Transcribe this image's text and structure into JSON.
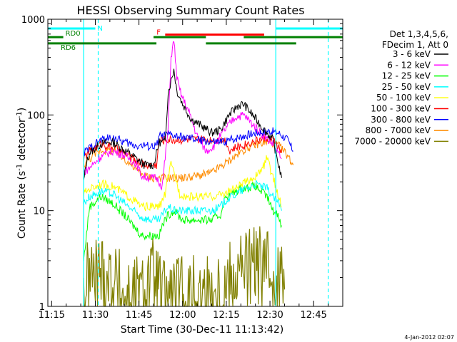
{
  "chart_data": {
    "type": "line",
    "title": "HESSI Observing Summary Count Rates",
    "xlabel": "Start Time (30-Dec-11 11:13:42)",
    "ylabel_pre": "Count Rate (s",
    "ylabel_sup1": "-1",
    "ylabel_mid": " detector",
    "ylabel_sup2": "-1",
    "ylabel_post": ")",
    "footer_stamp": "4-Jan-2012 02:07",
    "y_scale": "log",
    "ylim": [
      1,
      1000
    ],
    "xlim": [
      "11:13:42",
      "12:55:00"
    ],
    "x_ticks": [
      "11:15",
      "11:30",
      "11:45",
      "12:00",
      "12:15",
      "12:30",
      "12:45"
    ],
    "y_ticks": [
      "1",
      "10",
      "100",
      "1000"
    ],
    "legend": {
      "header": [
        "Det 1,3,4,5,6,",
        "FDecim 1, Att 0"
      ],
      "placement": "right"
    },
    "series": [
      {
        "name": "3 - 6 keV",
        "color": "#000000",
        "x": [
          "11:26",
          "11:27",
          "11:28",
          "11:32",
          "11:36",
          "11:40",
          "11:44",
          "11:47",
          "11:50",
          "11:52",
          "11:54",
          "11:55",
          "11:57",
          "11:58",
          "12:00",
          "12:03",
          "12:07",
          "12:10",
          "12:13",
          "12:16",
          "12:19",
          "12:21",
          "12:24",
          "12:28",
          "12:31",
          "12:33",
          "12:34"
        ],
        "y": [
          20,
          32,
          40,
          50,
          52,
          43,
          35,
          30,
          30,
          52,
          52,
          170,
          300,
          180,
          130,
          90,
          75,
          65,
          70,
          100,
          125,
          130,
          100,
          70,
          55,
          30,
          22
        ]
      },
      {
        "name": "6 - 12 keV",
        "color": "#ff00ff",
        "x": [
          "11:26",
          "11:28",
          "11:32",
          "11:36",
          "11:40",
          "11:44",
          "11:46",
          "11:49",
          "11:51",
          "11:53",
          "11:55",
          "11:56",
          "11:57",
          "11:58",
          "11:59",
          "12:00",
          "12:02",
          "12:05",
          "12:08",
          "12:11",
          "12:13",
          "12:16",
          "12:18",
          "12:21",
          "12:24",
          "12:28",
          "12:31",
          "12:34"
        ],
        "y": [
          25,
          28,
          37,
          42,
          38,
          31,
          23,
          22,
          22,
          18,
          70,
          400,
          600,
          250,
          180,
          150,
          110,
          60,
          42,
          48,
          60,
          80,
          95,
          100,
          80,
          60,
          50,
          35
        ]
      },
      {
        "name": "12 - 25 keV",
        "color": "#00ff00",
        "x": [
          "11:26",
          "11:28",
          "11:32",
          "11:36",
          "11:40",
          "11:43",
          "11:46",
          "11:48",
          "11:50",
          "11:52",
          "11:53",
          "11:55",
          "11:57",
          "12:00",
          "12:05",
          "12:10",
          "12:13",
          "12:14",
          "12:15",
          "12:20",
          "12:25",
          "12:29",
          "12:31",
          "12:33",
          "12:34"
        ],
        "y": [
          3,
          11,
          14,
          12,
          9,
          7,
          5.5,
          5.5,
          5.5,
          5.5,
          7,
          9,
          10,
          8,
          8,
          8,
          9,
          12,
          14,
          17,
          18,
          14,
          10,
          9,
          7
        ]
      },
      {
        "name": "25 - 50 keV",
        "color": "#00ffff",
        "x": [
          "11:26",
          "11:28",
          "11:32",
          "11:36",
          "11:40",
          "11:43",
          "11:46",
          "11:49",
          "11:52",
          "11:54",
          "11:55",
          "11:57",
          "12:00",
          "12:05",
          "12:10",
          "12:13",
          "12:15",
          "12:20",
          "12:25",
          "12:29",
          "12:31",
          "12:33",
          "12:34"
        ],
        "y": [
          12,
          14,
          16,
          15,
          12,
          10,
          8.5,
          8,
          8,
          10,
          11,
          10,
          10,
          10,
          10,
          11,
          13,
          16,
          19,
          17,
          14,
          12,
          10
        ]
      },
      {
        "name": "50 - 100 keV",
        "color": "#ffff00",
        "x": [
          "11:26",
          "11:28",
          "11:32",
          "11:36",
          "11:40",
          "11:43",
          "11:46",
          "11:49",
          "11:52",
          "11:54",
          "11:55",
          "11:56",
          "11:57",
          "11:59",
          "12:02",
          "12:06",
          "12:10",
          "12:14",
          "12:18",
          "12:22",
          "12:26",
          "12:28",
          "12:29",
          "12:30",
          "12:31",
          "12:32",
          "12:33",
          "12:34"
        ],
        "y": [
          15,
          17,
          19,
          18,
          15,
          13,
          11,
          11,
          11,
          15,
          22,
          30,
          25,
          15,
          14,
          14,
          14,
          15,
          17,
          20,
          24,
          30,
          36,
          28,
          22,
          18,
          14,
          11
        ]
      },
      {
        "name": "100 - 300 keV",
        "color": "#ff0000",
        "x": [
          "11:26",
          "11:28",
          "11:32",
          "11:36",
          "11:40",
          "11:44",
          "11:47",
          "11:49",
          "11:51",
          "11:52",
          "11:54",
          "12:00",
          "12:10",
          "12:15",
          "12:16",
          "12:18",
          "12:22",
          "12:26",
          "12:29",
          "12:32",
          "12:34"
        ],
        "y": [
          35,
          42,
          50,
          46,
          40,
          33,
          30,
          30,
          30,
          55,
          55,
          55,
          55,
          55,
          42,
          45,
          50,
          55,
          58,
          52,
          40
        ]
      },
      {
        "name": "300 - 800 keV",
        "color": "#0000ff",
        "x": [
          "11:26",
          "11:28",
          "11:32",
          "11:36",
          "11:40",
          "11:44",
          "11:47",
          "11:49",
          "11:51",
          "11:52",
          "11:55",
          "12:00",
          "12:05",
          "12:10",
          "12:14",
          "12:18",
          "12:22",
          "12:26",
          "12:30",
          "12:33",
          "12:36",
          "12:38"
        ],
        "y": [
          40,
          45,
          55,
          58,
          52,
          48,
          48,
          47,
          47,
          60,
          62,
          58,
          55,
          52,
          52,
          57,
          62,
          66,
          68,
          65,
          55,
          42
        ]
      },
      {
        "name": "800 - 7000 keV",
        "color": "#ff8c00",
        "x": [
          "11:26",
          "11:28",
          "11:32",
          "11:36",
          "11:40",
          "11:44",
          "11:47",
          "11:50",
          "11:55",
          "12:00",
          "12:05",
          "12:10",
          "12:14",
          "12:18",
          "12:22",
          "12:26",
          "12:30",
          "12:33",
          "12:36",
          "12:38"
        ],
        "y": [
          30,
          35,
          43,
          42,
          35,
          27,
          23,
          22,
          22,
          22,
          23,
          25,
          30,
          37,
          45,
          50,
          52,
          48,
          38,
          30
        ]
      },
      {
        "name": "7000 - 20000 keV",
        "color": "#808000",
        "x": [
          "11:26",
          "11:27",
          "11:28",
          "11:30",
          "11:32",
          "11:34",
          "11:36",
          "11:38",
          "11:40",
          "11:47",
          "11:48",
          "11:50",
          "11:52",
          "11:53",
          "12:14",
          "12:16",
          "12:20",
          "12:24",
          "12:28",
          "12:32",
          "12:34",
          "12:35"
        ],
        "y": [
          1.4,
          1.6,
          2.0,
          2.0,
          2.3,
          2.1,
          1.9,
          1.5,
          1.2,
          1.3,
          1.8,
          1.9,
          1.5,
          1.2,
          1.4,
          2.0,
          2.4,
          2.6,
          2.5,
          2.2,
          1.8,
          1.5
        ]
      }
    ],
    "flags": [
      {
        "label": "N",
        "color": "#00ffff",
        "level": 800,
        "segments": [
          [
            "11:13:42",
            "11:30"
          ],
          [
            "12:32",
            "12:55"
          ]
        ]
      },
      {
        "label": "RD0",
        "color": "#008000",
        "level": 650,
        "segments": [
          [
            "11:13:42",
            "11:19"
          ],
          [
            "11:50",
            "12:08"
          ],
          [
            "12:21",
            "12:55"
          ]
        ]
      },
      {
        "label": "RD6",
        "color": "#008000",
        "level": 560,
        "segments": [
          [
            "11:13:42",
            "11:51"
          ],
          [
            "12:08",
            "12:39"
          ]
        ]
      },
      {
        "label": "F",
        "color": "#ff0000",
        "level": 690,
        "segments": [
          [
            "11:54",
            "12:28"
          ]
        ]
      }
    ],
    "vlines": [
      {
        "time": "11:26",
        "style": "solid",
        "color": "#00ffff"
      },
      {
        "time": "11:31",
        "style": "dashed",
        "color": "#00ffff"
      },
      {
        "time": "12:32",
        "style": "solid",
        "color": "#00ffff"
      },
      {
        "time": "12:50",
        "style": "dashed",
        "color": "#00ffff"
      }
    ]
  }
}
